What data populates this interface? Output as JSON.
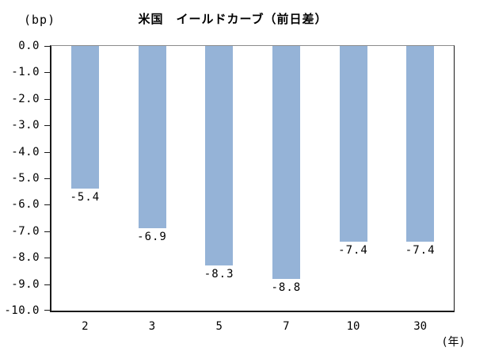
{
  "header": {
    "y_unit_label": "(bp)",
    "title": "米国　イールドカーブ（前日差）"
  },
  "footer": {
    "x_unit_label": "(年)"
  },
  "chart_data": {
    "type": "bar",
    "title": "米国　イールドカーブ（前日差）",
    "ylabel": "(bp)",
    "xlabel": "(年)",
    "categories": [
      "2",
      "3",
      "5",
      "7",
      "10",
      "30"
    ],
    "values": [
      -5.4,
      -6.9,
      -8.3,
      -8.8,
      -7.4,
      -7.4
    ],
    "data_labels": [
      "-5.4",
      "-6.9",
      "-8.3",
      "-8.8",
      "-7.4",
      "-7.4"
    ],
    "ylim": [
      0,
      -10
    ],
    "ytick_step": 1.0,
    "ytick_labels": [
      "0.0",
      "-1.0",
      "-2.0",
      "-3.0",
      "-4.0",
      "-5.0",
      "-6.0",
      "-7.0",
      "-8.0",
      "-9.0",
      "-10.0"
    ],
    "bar_color": "#95B3D7",
    "grid": false,
    "legend": "none"
  }
}
